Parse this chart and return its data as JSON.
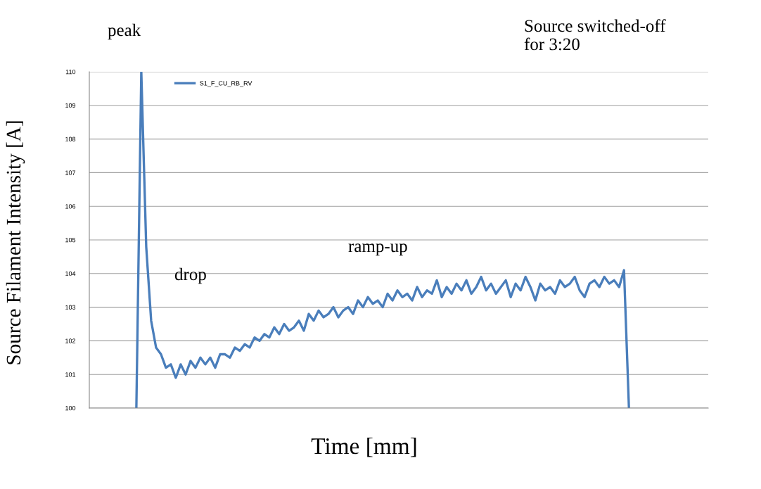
{
  "chart_data": {
    "type": "line",
    "ylabel": "Source Filament Intensity [A]",
    "xlabel": "Time [mm]",
    "annotations": [
      "peak",
      "drop",
      "ramp-up",
      "Source switched-off\nfor 3:20"
    ],
    "categories": [
      null,
      null,
      null,
      null,
      null,
      null,
      null,
      null,
      null,
      null,
      null,
      null,
      null,
      null,
      null,
      null,
      null,
      null,
      null,
      null,
      null,
      null,
      null,
      null,
      null,
      null,
      null,
      null,
      null,
      null,
      null,
      null,
      null,
      null,
      null,
      null,
      null,
      null,
      null,
      null,
      null,
      null,
      null,
      null,
      null,
      null,
      null,
      null,
      null,
      null,
      null,
      null,
      null,
      null,
      null,
      null,
      null,
      null,
      null,
      null,
      null,
      null,
      null,
      null,
      null,
      null,
      null,
      null,
      null,
      null,
      null,
      null,
      null,
      null,
      null,
      null,
      null,
      null,
      null,
      null,
      null,
      null,
      null,
      null,
      null,
      null,
      null,
      null,
      null,
      null,
      null,
      null,
      null,
      null,
      null,
      null,
      null,
      null,
      null,
      null,
      null
    ],
    "series": [
      {
        "name": "S1_F_CU_RB_RV",
        "color": "#4a7ebb",
        "values": [
          100,
          110,
          104.8,
          102.6,
          101.8,
          101.6,
          101.2,
          101.3,
          100.9,
          101.3,
          101.0,
          101.4,
          101.2,
          101.5,
          101.3,
          101.5,
          101.2,
          101.6,
          101.6,
          101.5,
          101.8,
          101.7,
          101.9,
          101.8,
          102.1,
          102.0,
          102.2,
          102.1,
          102.4,
          102.2,
          102.5,
          102.3,
          102.4,
          102.6,
          102.3,
          102.8,
          102.6,
          102.9,
          102.7,
          102.8,
          103.0,
          102.7,
          102.9,
          103.0,
          102.8,
          103.2,
          103.0,
          103.3,
          103.1,
          103.2,
          103.0,
          103.4,
          103.2,
          103.5,
          103.3,
          103.4,
          103.2,
          103.6,
          103.3,
          103.5,
          103.4,
          103.8,
          103.3,
          103.6,
          103.4,
          103.7,
          103.5,
          103.8,
          103.4,
          103.6,
          103.9,
          103.5,
          103.7,
          103.4,
          103.6,
          103.8,
          103.3,
          103.7,
          103.5,
          103.9,
          103.6,
          103.2,
          103.7,
          103.5,
          103.6,
          103.4,
          103.8,
          103.6,
          103.7,
          103.9,
          103.5,
          103.3,
          103.7,
          103.8,
          103.6,
          103.9,
          103.7,
          103.8,
          103.6,
          104.1,
          100
        ]
      }
    ],
    "ylim": [
      100,
      110
    ],
    "yticks": [
      100,
      101,
      102,
      103,
      104,
      105,
      106,
      107,
      108,
      109,
      110
    ],
    "grid": "y",
    "legend": "top left",
    "marker": "none",
    "line_style": "solid"
  }
}
